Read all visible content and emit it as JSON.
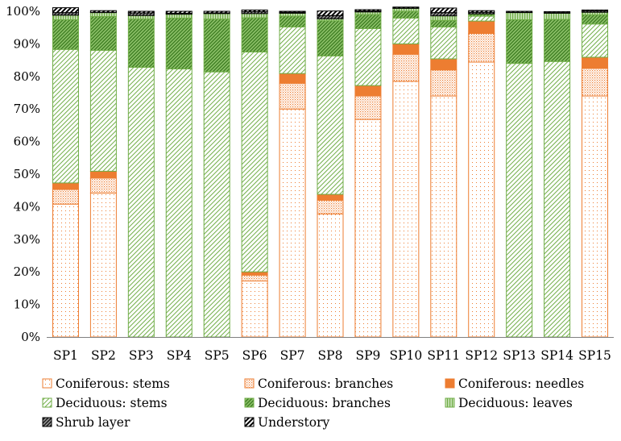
{
  "chart_data": {
    "type": "bar",
    "stacked": true,
    "normalized": true,
    "categories": [
      "SP1",
      "SP2",
      "SP3",
      "SP4",
      "SP5",
      "SP6",
      "SP7",
      "SP8",
      "SP9",
      "SP10",
      "SP11",
      "SP12",
      "SP13",
      "SP14",
      "SP15"
    ],
    "ylim": [
      0,
      100
    ],
    "yticks": [
      "0%",
      "10%",
      "20%",
      "30%",
      "40%",
      "50%",
      "60%",
      "70%",
      "80%",
      "90%",
      "100%"
    ],
    "xlabel": "",
    "ylabel": "",
    "legend_position": "bottom",
    "series": [
      {
        "name": "Coniferous: stems",
        "fill": "dots",
        "color": "#ed7d31",
        "values": [
          40.8,
          44.2,
          0,
          0,
          0,
          17.2,
          70.0,
          37.8,
          66.8,
          78.5,
          74.0,
          84.4,
          0,
          0,
          74.0
        ]
      },
      {
        "name": "Coniferous: branches",
        "fill": "dense-dots",
        "color": "#ed7d31",
        "values": [
          4.5,
          4.6,
          0,
          0,
          0,
          1.8,
          7.9,
          4.2,
          7.2,
          8.3,
          8.0,
          8.8,
          0,
          0,
          8.5
        ]
      },
      {
        "name": "Coniferous: needles",
        "fill": "solid",
        "color": "#ed7d31",
        "values": [
          2.0,
          2.1,
          0,
          0,
          0,
          1.0,
          3.0,
          1.8,
          3.2,
          3.2,
          3.4,
          3.8,
          0,
          0,
          3.4
        ]
      },
      {
        "name": "Deciduous: stems",
        "fill": "wide-diagonal",
        "color": "#70ad47",
        "values": [
          41.0,
          37.1,
          82.8,
          82.3,
          81.4,
          67.5,
          14.3,
          42.5,
          17.5,
          7.9,
          9.8,
          1.5,
          84.0,
          84.6,
          10.2
        ]
      },
      {
        "name": "Deciduous: branches",
        "fill": "dense-diagonal",
        "color": "#70ad47",
        "values": [
          9.1,
          10.4,
          14.8,
          15.6,
          16.2,
          10.5,
          3.3,
          10.8,
          4.3,
          2.1,
          2.0,
          0.5,
          13.4,
          12.9,
          2.8
        ]
      },
      {
        "name": "Deciduous: leaves",
        "fill": "vertical-lines",
        "color": "#70ad47",
        "values": [
          1.4,
          1.2,
          1.1,
          1.2,
          1.7,
          1.3,
          0.9,
          0.6,
          0.8,
          0.9,
          1.4,
          0.2,
          2.2,
          1.9,
          0.8
        ]
      },
      {
        "name": "Shrub layer",
        "fill": "dark-diagonal",
        "color": "#000000",
        "values": [
          0.8,
          0.1,
          0.8,
          0.3,
          0.2,
          0.6,
          0.3,
          1.0,
          0.3,
          0.1,
          1.0,
          0.5,
          0.1,
          0.2,
          0.4
        ]
      },
      {
        "name": "Understory",
        "fill": "wide-dark-diagonal",
        "color": "#000000",
        "values": [
          1.5,
          0.5,
          0.5,
          0.6,
          0.5,
          0.5,
          0.3,
          1.4,
          0.4,
          0.3,
          1.4,
          0.5,
          0.3,
          0.3,
          0.3
        ]
      }
    ]
  }
}
